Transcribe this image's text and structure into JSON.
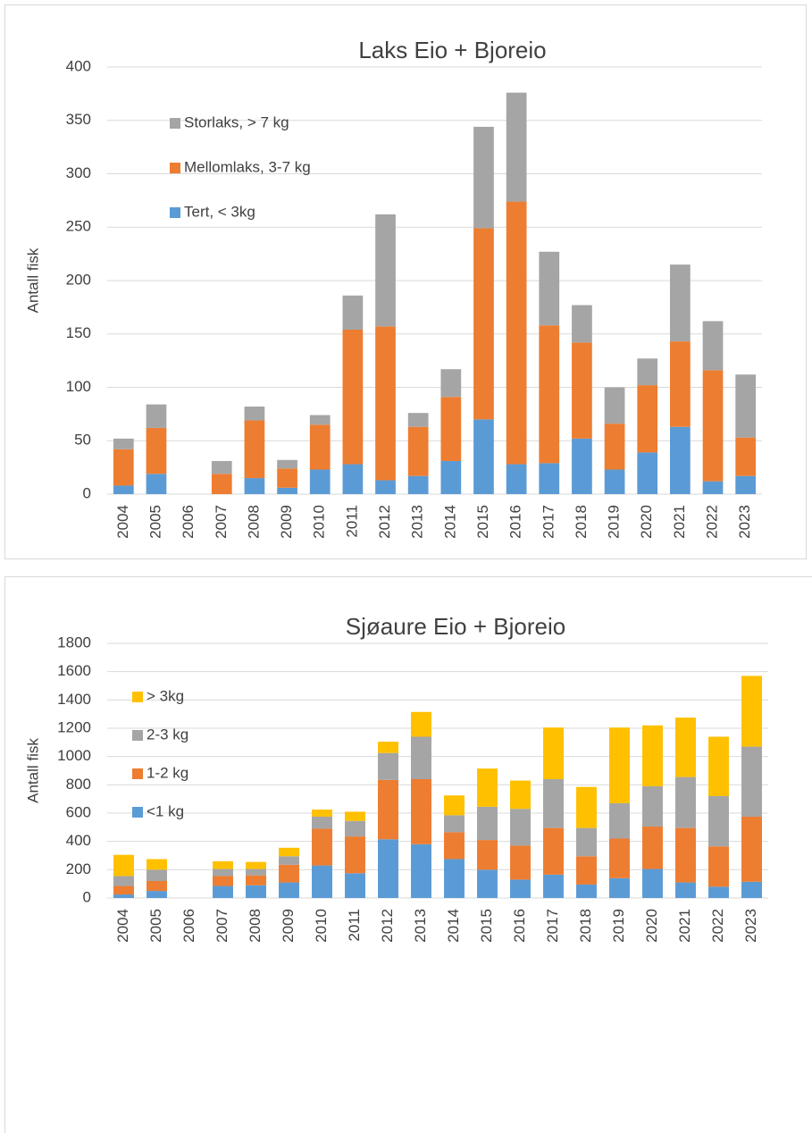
{
  "chart_data": [
    {
      "type": "bar",
      "stacked": true,
      "title": "Laks Eio + Bjoreio",
      "y_label": "Antall fisk",
      "categories": [
        "2004",
        "2005",
        "2006",
        "2007",
        "2008",
        "2009",
        "2010",
        "2011",
        "2012",
        "2013",
        "2014",
        "2015",
        "2016",
        "2017",
        "2018",
        "2019",
        "2020",
        "2021",
        "2022",
        "2023"
      ],
      "series": [
        {
          "name": "Tert, < 3kg",
          "color": "#5b9bd5",
          "values": [
            8,
            19,
            0,
            0,
            15,
            6,
            23,
            28,
            13,
            17,
            31,
            70,
            28,
            29,
            52,
            23,
            39,
            63,
            12,
            17
          ]
        },
        {
          "name": "Mellomlaks, 3-7 kg",
          "color": "#ed7d31",
          "values": [
            34,
            43,
            0,
            19,
            54,
            18,
            42,
            126,
            144,
            46,
            60,
            179,
            246,
            129,
            90,
            43,
            63,
            80,
            104,
            36
          ]
        },
        {
          "name": "Storlaks, > 7 kg",
          "color": "#a5a5a5",
          "values": [
            10,
            22,
            0,
            12,
            13,
            8,
            9,
            32,
            105,
            13,
            26,
            95,
            102,
            69,
            35,
            34,
            25,
            72,
            46,
            59
          ]
        }
      ],
      "ylim": [
        0,
        400
      ],
      "yticks": [
        0,
        50,
        100,
        150,
        200,
        250,
        300,
        350,
        400
      ],
      "grid": true,
      "legend": "top-left"
    },
    {
      "type": "bar",
      "stacked": true,
      "title": "Sjøaure Eio + Bjoreio",
      "y_label": "Antall fisk",
      "categories": [
        "2004",
        "2005",
        "2006",
        "2007",
        "2008",
        "2009",
        "2010",
        "2011",
        "2012",
        "2013",
        "2014",
        "2015",
        "2016",
        "2017",
        "2018",
        "2019",
        "2020",
        "2021",
        "2022",
        "2023"
      ],
      "series": [
        {
          "name": "<1 kg",
          "color": "#5b9bd5",
          "values": [
            25,
            50,
            0,
            85,
            90,
            110,
            230,
            175,
            415,
            380,
            275,
            200,
            130,
            165,
            95,
            140,
            205,
            110,
            80,
            115
          ]
        },
        {
          "name": "1-2 kg",
          "color": "#ed7d31",
          "values": [
            60,
            70,
            0,
            70,
            70,
            125,
            260,
            260,
            420,
            460,
            190,
            210,
            240,
            330,
            200,
            280,
            300,
            385,
            285,
            460
          ]
        },
        {
          "name": "2-3 kg",
          "color": "#a5a5a5",
          "values": [
            70,
            80,
            0,
            50,
            45,
            60,
            85,
            110,
            190,
            300,
            120,
            235,
            260,
            345,
            200,
            250,
            285,
            360,
            355,
            495
          ]
        },
        {
          "name": "> 3kg",
          "color": "#ffc000",
          "values": [
            150,
            75,
            0,
            55,
            50,
            60,
            50,
            65,
            80,
            175,
            140,
            270,
            200,
            365,
            290,
            535,
            430,
            420,
            420,
            500
          ]
        }
      ],
      "ylim": [
        0,
        1800
      ],
      "yticks": [
        0,
        200,
        400,
        600,
        800,
        1000,
        1200,
        1400,
        1600,
        1800
      ],
      "grid": true,
      "legend": "top-left"
    }
  ]
}
